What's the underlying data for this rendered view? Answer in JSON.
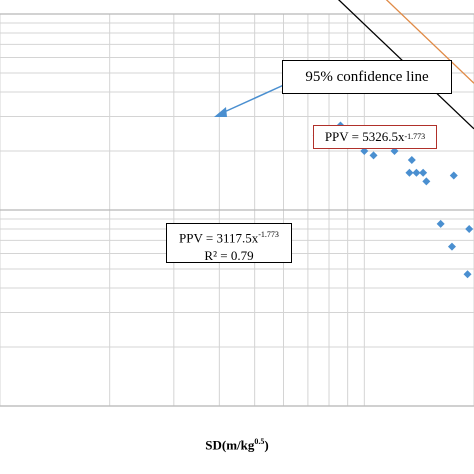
{
  "chart_data": {
    "type": "scatter",
    "xlabel": "SD(m/kg",
    "xlabel_sup": "0.5",
    "xlabel_tail": ")",
    "xscale": "log",
    "yscale": "log",
    "xlim": [
      1,
      20
    ],
    "ylim": [
      0.01,
      1
    ],
    "grid": true,
    "points": [
      {
        "x": 7.4,
        "y": 0.24
      },
      {
        "x": 10.3,
        "y": 0.55
      },
      {
        "x": 8.6,
        "y": 0.27
      },
      {
        "x": 10.0,
        "y": 0.2
      },
      {
        "x": 10.6,
        "y": 0.19
      },
      {
        "x": 12.1,
        "y": 0.2
      },
      {
        "x": 13.3,
        "y": 0.155
      },
      {
        "x": 13.5,
        "y": 0.18
      },
      {
        "x": 13.9,
        "y": 0.155
      },
      {
        "x": 14.5,
        "y": 0.155
      },
      {
        "x": 14.8,
        "y": 0.14
      },
      {
        "x": 16.2,
        "y": 0.085
      },
      {
        "x": 17.4,
        "y": 0.065
      },
      {
        "x": 17.6,
        "y": 0.15
      },
      {
        "x": 19.4,
        "y": 0.08
      },
      {
        "x": 19.2,
        "y": 0.047
      }
    ],
    "fit_lines": [
      {
        "label": "PPV = 3117.5x",
        "exponent_label": "-1.773",
        "r2_label": "R² = 0.79",
        "a": 3117.5,
        "b": -1.773,
        "color": "#000000"
      },
      {
        "label": "PPV = 5326.5x",
        "exponent_label": "-1.773",
        "a": 5326.5,
        "b": -1.773,
        "color": "#e08a46"
      }
    ],
    "annotation": "95% confidence line",
    "colors": {
      "points": "#4a8fd0",
      "grid": "#d4d4d4",
      "axis": "#bfbfbf",
      "arrow": "#4a8fd0",
      "upper_box_border": "#b0302a"
    }
  }
}
